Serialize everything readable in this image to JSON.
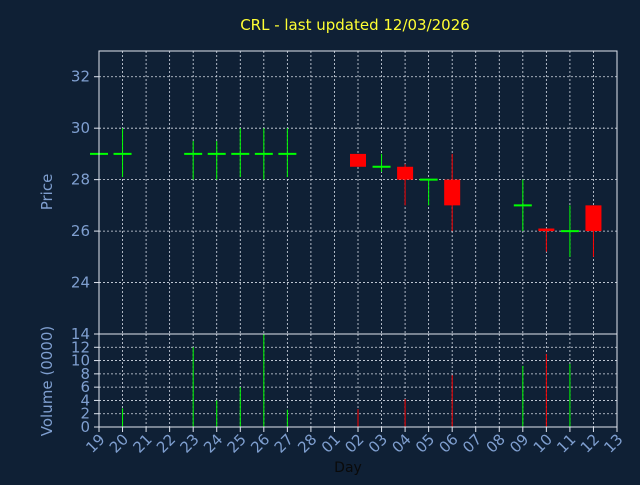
{
  "chart_data": [
    {
      "type": "candlestick",
      "title": "CRL - last updated 12/03/2026",
      "ylabel": "Price",
      "ylim": [
        22.0,
        33.0
      ],
      "yticks": [
        24,
        26,
        28,
        30,
        32
      ],
      "categories": [
        "19",
        "20",
        "21",
        "22",
        "23",
        "24",
        "25",
        "26",
        "27",
        "28",
        "01",
        "02",
        "03",
        "04",
        "05",
        "06",
        "07",
        "08",
        "09",
        "10",
        "11",
        "12",
        "13"
      ],
      "grid": true,
      "up_color": "#00ff00",
      "down_color": "#ff0000",
      "candles": [
        {
          "x": "19",
          "open": 29.0,
          "high": 29.0,
          "low": 29.0,
          "close": 29.0
        },
        {
          "x": "20",
          "open": 29.0,
          "high": 30.0,
          "low": 28.1,
          "close": 29.0
        },
        {
          "x": "23",
          "open": 29.0,
          "high": 29.5,
          "low": 28.0,
          "close": 29.0
        },
        {
          "x": "24",
          "open": 29.0,
          "high": 29.5,
          "low": 28.0,
          "close": 29.0
        },
        {
          "x": "25",
          "open": 29.0,
          "high": 30.0,
          "low": 28.1,
          "close": 29.0
        },
        {
          "x": "26",
          "open": 29.0,
          "high": 30.0,
          "low": 28.0,
          "close": 29.0
        },
        {
          "x": "27",
          "open": 29.0,
          "high": 30.0,
          "low": 28.1,
          "close": 29.0
        },
        {
          "x": "02",
          "open": 29.0,
          "high": 29.0,
          "low": 28.5,
          "close": 28.5
        },
        {
          "x": "03",
          "open": 28.5,
          "high": 29.0,
          "low": 28.3,
          "close": 28.5
        },
        {
          "x": "04",
          "open": 28.5,
          "high": 28.6,
          "low": 27.0,
          "close": 28.0
        },
        {
          "x": "05",
          "open": 28.0,
          "high": 28.0,
          "low": 27.0,
          "close": 28.0
        },
        {
          "x": "06",
          "open": 28.0,
          "high": 29.0,
          "low": 26.0,
          "close": 27.0
        },
        {
          "x": "09",
          "open": 27.0,
          "high": 28.0,
          "low": 26.0,
          "close": 27.0
        },
        {
          "x": "10",
          "open": 26.1,
          "high": 26.1,
          "low": 25.2,
          "close": 26.0
        },
        {
          "x": "11",
          "open": 26.0,
          "high": 27.0,
          "low": 25.0,
          "close": 26.0
        },
        {
          "x": "12",
          "open": 27.0,
          "high": 27.0,
          "low": 25.0,
          "close": 26.0
        }
      ]
    },
    {
      "type": "bar",
      "ylabel": "Volume (0000)",
      "xlabel": "Day",
      "ylim": [
        0,
        14
      ],
      "yticks": [
        0,
        2,
        4,
        6,
        8,
        10,
        12,
        14
      ],
      "categories": [
        "19",
        "20",
        "21",
        "22",
        "23",
        "24",
        "25",
        "26",
        "27",
        "28",
        "01",
        "02",
        "03",
        "04",
        "05",
        "06",
        "07",
        "08",
        "09",
        "10",
        "11",
        "12",
        "13"
      ],
      "series": [
        {
          "values": [
            {
              "x": "20",
              "value": 2.8,
              "color": "#00ff00"
            },
            {
              "x": "23",
              "value": 12.0,
              "color": "#00ff00"
            },
            {
              "x": "24",
              "value": 4.0,
              "color": "#00ff00"
            },
            {
              "x": "25",
              "value": 6.0,
              "color": "#00ff00"
            },
            {
              "x": "26",
              "value": 14.0,
              "color": "#00ff00"
            },
            {
              "x": "27",
              "value": 2.6,
              "color": "#00ff00"
            },
            {
              "x": "02",
              "value": 2.7,
              "color": "#ff0000"
            },
            {
              "x": "04",
              "value": 4.2,
              "color": "#ff0000"
            },
            {
              "x": "06",
              "value": 7.8,
              "color": "#ff0000"
            },
            {
              "x": "09",
              "value": 9.2,
              "color": "#00ff00"
            },
            {
              "x": "10",
              "value": 11.0,
              "color": "#ff0000"
            },
            {
              "x": "11",
              "value": 9.5,
              "color": "#00ff00"
            }
          ]
        }
      ]
    }
  ]
}
